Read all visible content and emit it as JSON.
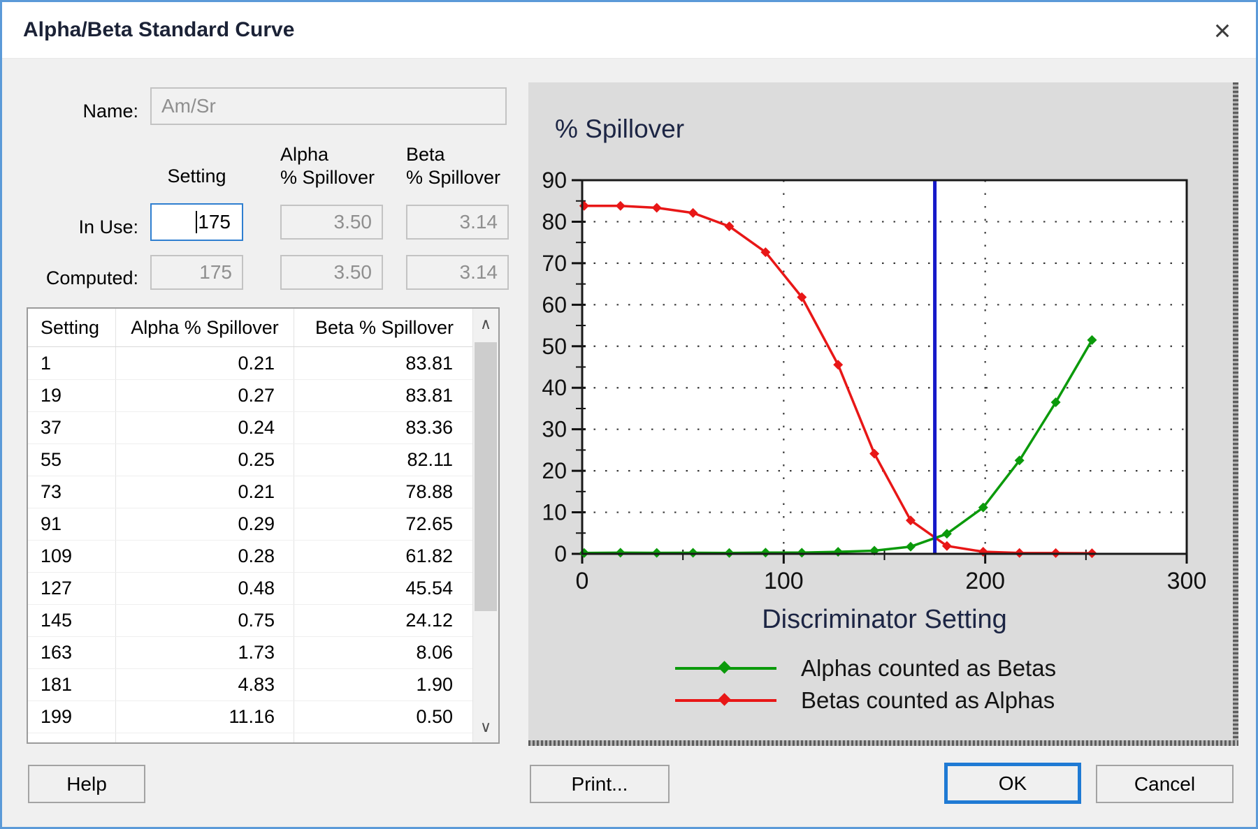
{
  "window": {
    "title": "Alpha/Beta Standard Curve",
    "close_icon": "×"
  },
  "form": {
    "name_label": "Name:",
    "name_value": "Am/Sr",
    "setting_header": "Setting",
    "alpha_header_line1": "Alpha",
    "alpha_header_line2": "% Spillover",
    "beta_header_line1": "Beta",
    "beta_header_line2": "% Spillover",
    "in_use_label": "In Use:",
    "in_use": {
      "setting": "175",
      "alpha": "3.50",
      "beta": "3.14"
    },
    "computed_label": "Computed:",
    "computed": {
      "setting": "175",
      "alpha": "3.50",
      "beta": "3.14"
    }
  },
  "table": {
    "headers": [
      "Setting",
      "Alpha % Spillover",
      "Beta % Spillover"
    ],
    "rows": [
      [
        "1",
        "0.21",
        "83.81"
      ],
      [
        "19",
        "0.27",
        "83.81"
      ],
      [
        "37",
        "0.24",
        "83.36"
      ],
      [
        "55",
        "0.25",
        "82.11"
      ],
      [
        "73",
        "0.21",
        "78.88"
      ],
      [
        "91",
        "0.29",
        "72.65"
      ],
      [
        "109",
        "0.28",
        "61.82"
      ],
      [
        "127",
        "0.48",
        "45.54"
      ],
      [
        "145",
        "0.75",
        "24.12"
      ],
      [
        "163",
        "1.73",
        "8.06"
      ],
      [
        "181",
        "4.83",
        "1.90"
      ],
      [
        "199",
        "11.16",
        "0.50"
      ]
    ],
    "scroll_up_icon": "∧",
    "scroll_down_icon": "∨"
  },
  "buttons": {
    "help": "Help",
    "print": "Print...",
    "ok": "OK",
    "cancel": "Cancel"
  },
  "chart_data": {
    "type": "line",
    "title": "% Spillover",
    "xlabel": "Discriminator Setting",
    "x": [
      1,
      19,
      37,
      55,
      73,
      91,
      109,
      127,
      145,
      163,
      181,
      199,
      217,
      235,
      253
    ],
    "series": [
      {
        "name": "Alphas counted as Betas",
        "color": "#0b9a0b",
        "values": [
          0.21,
          0.27,
          0.24,
          0.25,
          0.21,
          0.29,
          0.28,
          0.48,
          0.75,
          1.73,
          4.83,
          11.16,
          22.5,
          36.5,
          51.5
        ]
      },
      {
        "name": "Betas counted as Alphas",
        "color": "#e81717",
        "values": [
          83.81,
          83.81,
          83.36,
          82.11,
          78.88,
          72.65,
          61.82,
          45.54,
          24.12,
          8.06,
          1.9,
          0.5,
          0.2,
          0.18,
          0.15
        ]
      }
    ],
    "marker_line_x": 175,
    "marker_line_color": "#1518c9",
    "xlim": [
      0,
      300
    ],
    "ylim": [
      0,
      90
    ],
    "xticks": [
      0,
      100,
      200,
      300
    ],
    "yticks": [
      0,
      10,
      20,
      30,
      40,
      50,
      60,
      70,
      80,
      90
    ],
    "x_minor_step": 50,
    "y_minor_step": 5,
    "grid_x": [
      100,
      200
    ],
    "grid_y": [
      10,
      20,
      30,
      40,
      50,
      60,
      70,
      80
    ],
    "legend_position": "bottom"
  },
  "colors": {
    "accent_blue": "#2f7fd0",
    "dialog_border": "#5b9ad8",
    "panel_gray": "#dcdcdc"
  }
}
